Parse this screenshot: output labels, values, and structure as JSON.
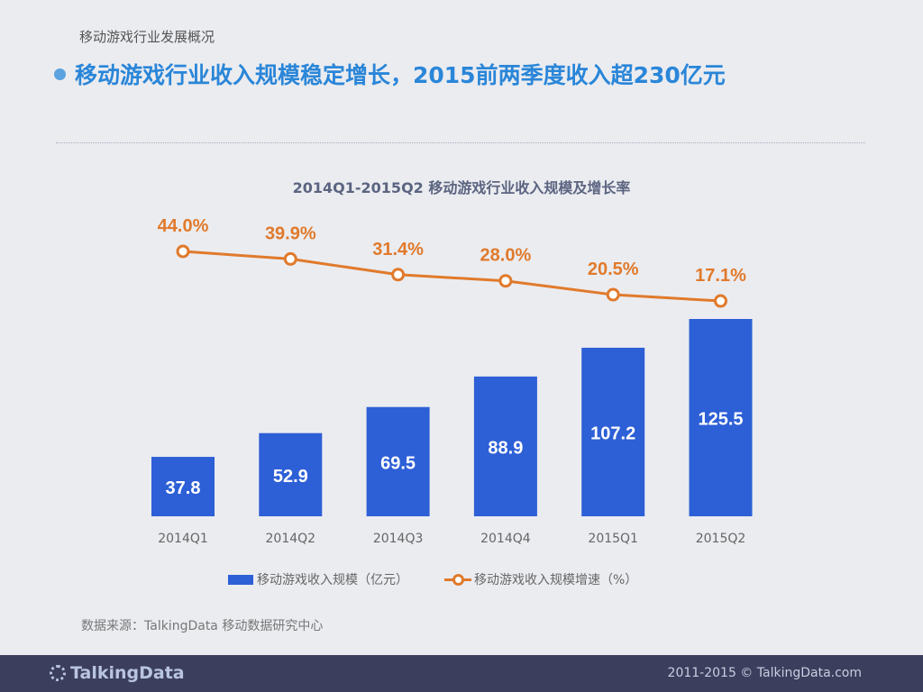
{
  "section_title": "移动游戏行业发展概况",
  "headline": "移动游戏行业收入规模稳定增长，2015前两季度收入超230亿元",
  "chart_data": {
    "type": "bar+line",
    "title": "2014Q1-2015Q2 移动游戏行业收入规模及增长率",
    "categories": [
      "2014Q1",
      "2014Q2",
      "2014Q3",
      "2014Q4",
      "2015Q1",
      "2015Q2"
    ],
    "series": [
      {
        "name": "移动游戏收入规模（亿元）",
        "type": "bar",
        "color": "#2d5fd6",
        "values": [
          37.8,
          52.9,
          69.5,
          88.9,
          107.2,
          125.5
        ],
        "labels": [
          "37.8",
          "52.9",
          "69.5",
          "88.9",
          "107.2",
          "125.5"
        ]
      },
      {
        "name": "移动游戏收入规模增速（%）",
        "type": "line",
        "color": "#e07a2c",
        "values": [
          44.0,
          39.9,
          31.4,
          28.0,
          20.5,
          17.1
        ],
        "labels": [
          "44.0%",
          "39.9%",
          "31.4%",
          "28.0%",
          "20.5%",
          "17.1%"
        ]
      }
    ],
    "legend_position": "bottom",
    "grid": false
  },
  "source": "数据来源：TalkingData 移动数据研究中心",
  "footer": {
    "logo": "TalkingData",
    "copyright": "2011-2015 © TalkingData.com"
  }
}
